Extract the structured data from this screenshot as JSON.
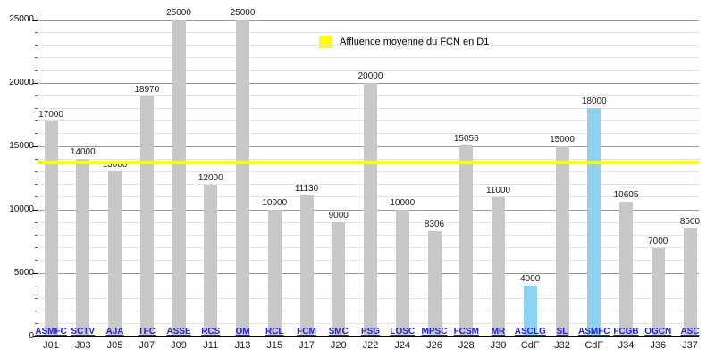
{
  "chart_data": {
    "type": "bar",
    "title": "",
    "ylim": [
      0,
      25000
    ],
    "y_ticks": [
      0,
      5000,
      10000,
      15000,
      20000,
      25000
    ],
    "y_major_step": 5000,
    "y_minor_step": 1000,
    "grid": true,
    "legend": {
      "position": "top-center",
      "label": "Affluence moyenne du FCN en D1",
      "swatch_color": "#FFFF00"
    },
    "average_line": {
      "value": 13700,
      "color": "#FFFF00"
    },
    "colors": {
      "league_bar": "#C8C8C8",
      "cup_bar": "#8DD2F0",
      "team_link": "#2424C8",
      "journee_label": "#1A1A1A",
      "value_label": "#1A1A1A"
    },
    "bars": [
      {
        "journee": "J01",
        "team": "ASMFC",
        "value": 17000,
        "competition": "D1"
      },
      {
        "journee": "J03",
        "team": "SCTV",
        "value": 14000,
        "competition": "D1"
      },
      {
        "journee": "J05",
        "team": "AJA",
        "value": 13000,
        "competition": "D1"
      },
      {
        "journee": "J07",
        "team": "TFC",
        "value": 18970,
        "competition": "D1"
      },
      {
        "journee": "J09",
        "team": "ASSE",
        "value": 25000,
        "competition": "D1"
      },
      {
        "journee": "J11",
        "team": "RCS",
        "value": 12000,
        "competition": "D1"
      },
      {
        "journee": "J13",
        "team": "OM",
        "value": 25000,
        "competition": "D1"
      },
      {
        "journee": "J15",
        "team": "RCL",
        "value": 10000,
        "competition": "D1"
      },
      {
        "journee": "J17",
        "team": "FCM",
        "value": 11130,
        "competition": "D1"
      },
      {
        "journee": "J20",
        "team": "SMC",
        "value": 9000,
        "competition": "D1"
      },
      {
        "journee": "J22",
        "team": "PSG",
        "value": 20000,
        "competition": "D1"
      },
      {
        "journee": "J24",
        "team": "LOSC",
        "value": 10000,
        "competition": "D1"
      },
      {
        "journee": "J26",
        "team": "MPSC",
        "value": 8306,
        "competition": "D1"
      },
      {
        "journee": "J28",
        "team": "FCSM",
        "value": 15056,
        "competition": "D1"
      },
      {
        "journee": "J30",
        "team": "MR",
        "value": 11000,
        "competition": "D1"
      },
      {
        "journee": "CdF",
        "team": "ASCLG",
        "value": 4000,
        "competition": "CdF"
      },
      {
        "journee": "J32",
        "team": "SL",
        "value": 15000,
        "competition": "D1"
      },
      {
        "journee": "CdF",
        "team": "ASMFC",
        "value": 18000,
        "competition": "CdF"
      },
      {
        "journee": "J34",
        "team": "FCGB",
        "value": 10605,
        "competition": "D1"
      },
      {
        "journee": "J36",
        "team": "OGCN",
        "value": 7000,
        "competition": "D1"
      },
      {
        "journee": "J37",
        "team": "ASC",
        "value": 8500,
        "competition": "D1"
      }
    ]
  }
}
